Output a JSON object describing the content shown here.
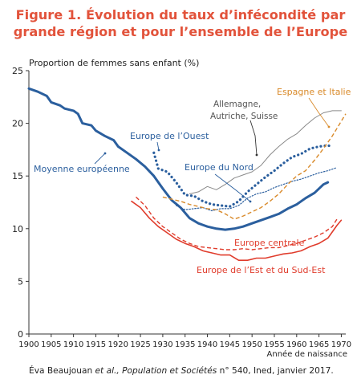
{
  "title_line1": "Figure 1. Évolution du taux d’infécondité par",
  "title_line2": "grande région et pour l’ensemble de l’Europe",
  "source": {
    "author": "Éva Beaujouan",
    "etal": " et al., ",
    "journal": "Population et Sociétés",
    "rest": " n° 540, Ined, janvier 2017."
  },
  "chart_data": {
    "type": "line",
    "ylabel": "Proportion de femmes sans enfant (%)",
    "xlabel": "Année de naissance",
    "xlim": [
      1900,
      1971
    ],
    "ylim": [
      0,
      25
    ],
    "x_ticks": [
      1900,
      1905,
      1910,
      1915,
      1920,
      1925,
      1930,
      1935,
      1940,
      1945,
      1950,
      1955,
      1960,
      1965,
      1970
    ],
    "y_ticks": [
      0,
      5,
      10,
      15,
      20,
      25
    ],
    "grid": false,
    "colors": {
      "blue": "#2b5f9e",
      "red": "#e03c2c",
      "orange": "#d98a2a",
      "gray": "#8a8a8a",
      "title": "#e2533b"
    },
    "series": [
      {
        "name": "Moyenne européenne",
        "color": "#2b5f9e",
        "style": "solid",
        "points": [
          [
            1900,
            23.3
          ],
          [
            1902,
            23.0
          ],
          [
            1904,
            22.6
          ],
          [
            1905,
            22.0
          ],
          [
            1907,
            21.7
          ],
          [
            1908,
            21.4
          ],
          [
            1910,
            21.2
          ],
          [
            1911,
            20.9
          ],
          [
            1912,
            20.0
          ],
          [
            1914,
            19.8
          ],
          [
            1915,
            19.3
          ],
          [
            1917,
            18.8
          ],
          [
            1919,
            18.4
          ],
          [
            1920,
            17.8
          ],
          [
            1922,
            17.2
          ],
          [
            1924,
            16.6
          ],
          [
            1926,
            15.9
          ],
          [
            1928,
            15.0
          ],
          [
            1930,
            13.8
          ],
          [
            1932,
            12.7
          ],
          [
            1934,
            12.0
          ],
          [
            1936,
            11.0
          ],
          [
            1938,
            10.5
          ],
          [
            1940,
            10.2
          ],
          [
            1942,
            10.0
          ],
          [
            1944,
            9.9
          ],
          [
            1946,
            10.0
          ],
          [
            1948,
            10.2
          ],
          [
            1950,
            10.5
          ],
          [
            1952,
            10.8
          ],
          [
            1954,
            11.1
          ],
          [
            1956,
            11.4
          ],
          [
            1958,
            11.9
          ],
          [
            1960,
            12.3
          ],
          [
            1962,
            12.9
          ],
          [
            1964,
            13.4
          ],
          [
            1966,
            14.2
          ],
          [
            1967,
            14.4
          ]
        ]
      },
      {
        "name": "Europe de l’Ouest",
        "color": "#2b5f9e",
        "style": "dotted",
        "points": [
          [
            1928,
            17.2
          ],
          [
            1929,
            15.7
          ],
          [
            1931,
            15.4
          ],
          [
            1933,
            14.4
          ],
          [
            1935,
            13.2
          ],
          [
            1937,
            13.1
          ],
          [
            1939,
            12.6
          ],
          [
            1941,
            12.3
          ],
          [
            1943,
            12.2
          ],
          [
            1945,
            12.1
          ],
          [
            1947,
            12.6
          ],
          [
            1949,
            13.5
          ],
          [
            1951,
            14.2
          ],
          [
            1953,
            14.9
          ],
          [
            1955,
            15.5
          ],
          [
            1957,
            16.2
          ],
          [
            1959,
            16.8
          ],
          [
            1961,
            17.1
          ],
          [
            1963,
            17.6
          ],
          [
            1965,
            17.8
          ],
          [
            1967,
            17.9
          ],
          [
            1968,
            17.8
          ]
        ]
      },
      {
        "name": "Europe du Nord",
        "color": "#2b5f9e",
        "style": "fine-dotted",
        "points": [
          [
            1933,
            12.2
          ],
          [
            1935,
            11.8
          ],
          [
            1937,
            11.9
          ],
          [
            1939,
            12.0
          ],
          [
            1941,
            11.7
          ],
          [
            1943,
            11.9
          ],
          [
            1945,
            11.9
          ],
          [
            1947,
            12.2
          ],
          [
            1949,
            12.9
          ],
          [
            1951,
            13.3
          ],
          [
            1953,
            13.5
          ],
          [
            1955,
            13.9
          ],
          [
            1957,
            14.2
          ],
          [
            1959,
            14.5
          ],
          [
            1961,
            14.7
          ],
          [
            1963,
            15.0
          ],
          [
            1965,
            15.3
          ],
          [
            1967,
            15.5
          ],
          [
            1969,
            15.8
          ]
        ]
      },
      {
        "name": "Allemagne, Autriche, Suisse",
        "color": "#8a8a8a",
        "style": "solid",
        "points": [
          [
            1936,
            13.3
          ],
          [
            1938,
            13.5
          ],
          [
            1940,
            14.0
          ],
          [
            1942,
            13.7
          ],
          [
            1944,
            14.2
          ],
          [
            1946,
            14.8
          ],
          [
            1948,
            15.1
          ],
          [
            1950,
            15.4
          ],
          [
            1952,
            16.0
          ],
          [
            1954,
            17.0
          ],
          [
            1956,
            17.8
          ],
          [
            1958,
            18.5
          ],
          [
            1960,
            19.0
          ],
          [
            1962,
            19.8
          ],
          [
            1964,
            20.5
          ],
          [
            1966,
            21.0
          ],
          [
            1968,
            21.2
          ],
          [
            1970,
            21.2
          ]
        ]
      },
      {
        "name": "Espagne et Italie",
        "color": "#d98a2a",
        "style": "dashed",
        "points": [
          [
            1930,
            13.0
          ],
          [
            1932,
            12.8
          ],
          [
            1934,
            12.6
          ],
          [
            1936,
            12.3
          ],
          [
            1938,
            12.1
          ],
          [
            1940,
            11.9
          ],
          [
            1942,
            11.8
          ],
          [
            1944,
            11.4
          ],
          [
            1946,
            10.9
          ],
          [
            1948,
            11.2
          ],
          [
            1950,
            11.6
          ],
          [
            1952,
            12.0
          ],
          [
            1954,
            12.6
          ],
          [
            1956,
            13.3
          ],
          [
            1958,
            14.2
          ],
          [
            1960,
            15.0
          ],
          [
            1962,
            15.5
          ],
          [
            1964,
            16.5
          ],
          [
            1966,
            17.6
          ],
          [
            1968,
            18.8
          ],
          [
            1970,
            20.2
          ],
          [
            1971,
            20.9
          ]
        ]
      },
      {
        "name": "Europe centrale",
        "color": "#e03c2c",
        "style": "dashed",
        "points": [
          [
            1924,
            13.0
          ],
          [
            1926,
            12.2
          ],
          [
            1928,
            11.0
          ],
          [
            1930,
            10.2
          ],
          [
            1932,
            9.6
          ],
          [
            1934,
            9.0
          ],
          [
            1936,
            8.6
          ],
          [
            1938,
            8.3
          ],
          [
            1940,
            8.2
          ],
          [
            1942,
            8.1
          ],
          [
            1944,
            8.0
          ],
          [
            1946,
            8.0
          ],
          [
            1948,
            8.1
          ],
          [
            1950,
            8.0
          ],
          [
            1952,
            8.1
          ],
          [
            1954,
            8.2
          ],
          [
            1956,
            8.2
          ],
          [
            1958,
            8.4
          ],
          [
            1960,
            8.6
          ],
          [
            1962,
            8.9
          ],
          [
            1964,
            9.2
          ],
          [
            1966,
            9.6
          ],
          [
            1968,
            10.2
          ],
          [
            1969,
            10.9
          ]
        ]
      },
      {
        "name": "Europe de l’Est et du Sud-Est",
        "color": "#e03c2c",
        "style": "solid",
        "points": [
          [
            1923,
            12.6
          ],
          [
            1925,
            12.0
          ],
          [
            1927,
            11.0
          ],
          [
            1929,
            10.2
          ],
          [
            1931,
            9.6
          ],
          [
            1933,
            9.0
          ],
          [
            1935,
            8.6
          ],
          [
            1937,
            8.3
          ],
          [
            1939,
            7.9
          ],
          [
            1941,
            7.7
          ],
          [
            1943,
            7.5
          ],
          [
            1945,
            7.5
          ],
          [
            1947,
            7.0
          ],
          [
            1949,
            7.0
          ],
          [
            1951,
            7.2
          ],
          [
            1953,
            7.2
          ],
          [
            1955,
            7.4
          ],
          [
            1957,
            7.6
          ],
          [
            1959,
            7.7
          ],
          [
            1961,
            7.9
          ],
          [
            1963,
            8.3
          ],
          [
            1965,
            8.6
          ],
          [
            1967,
            9.1
          ],
          [
            1969,
            10.3
          ],
          [
            1970,
            10.8
          ]
        ]
      }
    ],
    "annotations": [
      {
        "text": "Moyenne européenne",
        "color": "#2b5f9e"
      },
      {
        "text": "Europe de l’Ouest",
        "color": "#2b5f9e"
      },
      {
        "text": "Europe du Nord",
        "color": "#2b5f9e"
      },
      {
        "text": "Allemagne,",
        "color": "#555555"
      },
      {
        "text": "Autriche, Suisse",
        "color": "#555555"
      },
      {
        "text": "Espagne et Italie",
        "color": "#d98a2a"
      },
      {
        "text": "Europe centrale",
        "color": "#e03c2c"
      },
      {
        "text": "Europe de l’Est et du Sud-Est",
        "color": "#e03c2c"
      }
    ]
  }
}
